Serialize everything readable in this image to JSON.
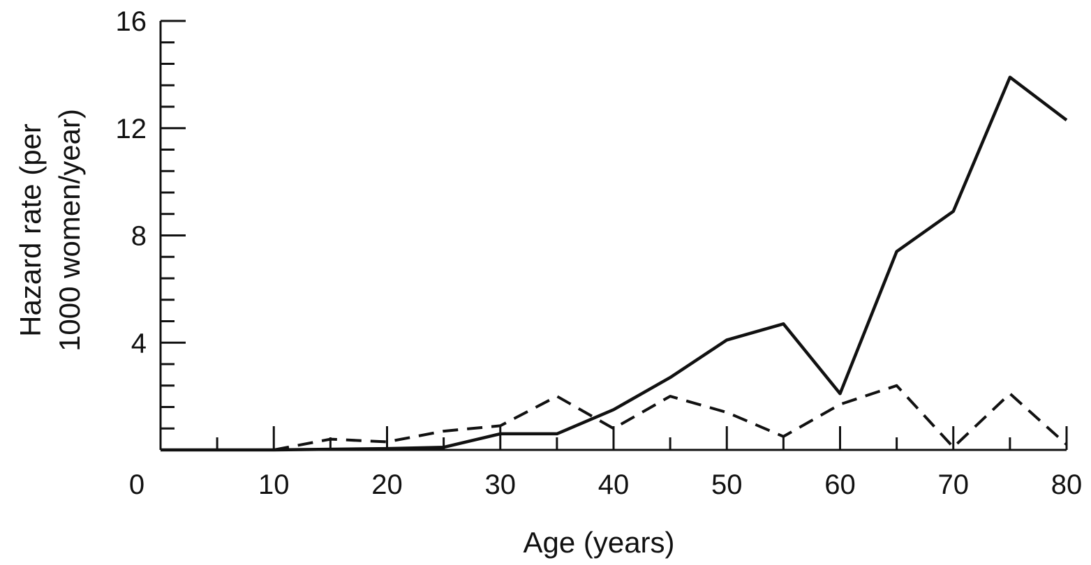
{
  "chart_data": {
    "type": "line",
    "title": "",
    "xlabel": "Age (years)",
    "ylabel_line1": "Hazard rate (per",
    "ylabel_line2": "1000 women/year)",
    "xlim": [
      0,
      80
    ],
    "ylim": [
      0,
      16
    ],
    "x_ticks": [
      0,
      10,
      20,
      30,
      40,
      50,
      60,
      70,
      80
    ],
    "x_minor_ticks": [
      5,
      15,
      25,
      35,
      45,
      55,
      65,
      75
    ],
    "x_tick_labels": [
      "0",
      "10",
      "20",
      "30",
      "40",
      "50",
      "60",
      "70",
      "80"
    ],
    "y_ticks": [
      0,
      4,
      8,
      12,
      16
    ],
    "y_tick_labels": [
      "4",
      "8",
      "12",
      "16"
    ],
    "y_minor_step": 0.8,
    "grid": false,
    "legend": "none",
    "series": [
      {
        "style": "solid",
        "x": [
          0,
          10,
          20,
          25,
          30,
          35,
          40,
          45,
          50,
          55,
          60,
          65,
          70,
          75,
          80
        ],
        "values": [
          0,
          0,
          0.05,
          0.1,
          0.6,
          0.6,
          1.5,
          2.7,
          4.1,
          4.7,
          2.1,
          7.4,
          8.9,
          13.9,
          12.3
        ]
      },
      {
        "style": "dashed",
        "x": [
          10,
          15,
          20,
          25,
          30,
          35,
          40,
          45,
          50,
          55,
          60,
          65,
          70,
          75,
          80
        ],
        "values": [
          0,
          0.4,
          0.3,
          0.7,
          0.9,
          2.0,
          0.8,
          2.0,
          1.4,
          0.5,
          1.7,
          2.4,
          0.1,
          2.1,
          0.2
        ]
      }
    ]
  }
}
